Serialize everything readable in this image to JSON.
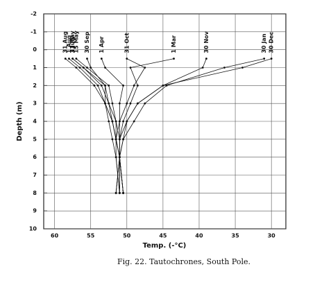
{
  "chart_data": {
    "type": "line",
    "xlabel": "Temp. (-°C)",
    "ylabel": "Depth (m)",
    "caption": "Fig. 22.  Tautochrones, South Pole.",
    "y": [
      0.5,
      1,
      2,
      3,
      4,
      5,
      6,
      8
    ],
    "series": [
      {
        "name": "31 Aug",
        "color": "#111",
        "values": [
          58.5,
          57,
          54.5,
          53,
          52,
          51.5,
          51,
          50.5
        ]
      },
      {
        "name": "1 July",
        "color": "#111",
        "values": [
          57.5,
          56,
          53.5,
          52.5,
          52,
          51.5,
          51,
          50.5
        ]
      },
      {
        "name": "15 May",
        "color": "#111",
        "values": [
          57,
          55.5,
          52.5,
          52,
          51.5,
          51.5,
          51,
          50.5
        ]
      },
      {
        "name": "31 May",
        "color": "#111",
        "values": [
          57.5,
          56,
          53,
          52.5,
          51.5,
          51,
          51,
          50.5
        ]
      },
      {
        "name": "1 Aug",
        "color": "#111",
        "values": [
          58,
          56.5,
          54,
          53,
          52,
          51.5,
          51,
          50.5
        ]
      },
      {
        "name": "30 Sep",
        "color": "#111",
        "values": [
          55.5,
          55,
          53,
          53,
          52.5,
          52,
          51.5,
          51
        ]
      },
      {
        "name": "1 Apr",
        "color": "#111",
        "values": [
          53.5,
          53,
          50.5,
          51,
          51,
          51,
          51,
          51
        ]
      },
      {
        "name": "31 Oct",
        "color": "#111",
        "values": [
          50,
          47.5,
          49,
          50,
          51,
          51.5,
          51.5,
          51
        ]
      },
      {
        "name": "1 Mar",
        "color": "#111",
        "values": [
          43.5,
          49.5,
          48.5,
          49.5,
          50.5,
          51,
          51,
          51
        ]
      },
      {
        "name": "30 Nov",
        "color": "#111",
        "values": [
          39,
          39.5,
          45,
          48.5,
          50,
          51,
          51,
          51.5
        ]
      },
      {
        "name": "30 Jan",
        "color": "#111",
        "values": [
          31,
          36.5,
          44.5,
          47.5,
          49,
          50.5,
          51,
          51.5
        ]
      },
      {
        "name": "30 Dec",
        "color": "#111",
        "values": [
          30,
          34,
          45,
          48.5,
          50,
          50.5,
          51,
          51.5
        ]
      }
    ],
    "xlim": [
      61.5,
      28
    ],
    "xticks": [
      60,
      55,
      50,
      45,
      40,
      35,
      30
    ],
    "ylim": [
      -2,
      10
    ],
    "yticks": [
      -2,
      -1,
      0,
      1,
      2,
      3,
      4,
      5,
      6,
      7,
      8,
      9,
      10
    ],
    "y_inverted": true,
    "grid": true
  }
}
